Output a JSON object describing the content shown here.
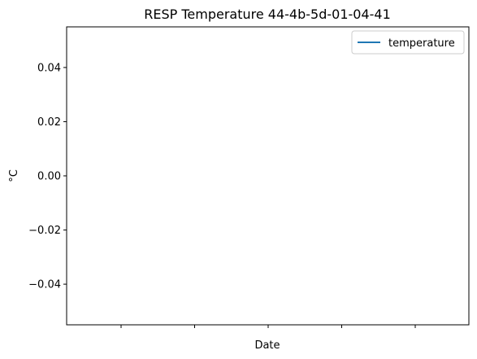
{
  "chart_data": {
    "type": "line",
    "title": "RESP Temperature 44-4b-5d-01-04-41",
    "xlabel": "Date",
    "ylabel": "°C",
    "ylim": [
      -0.055,
      0.055
    ],
    "yticks": [
      0.04,
      0.02,
      0.0,
      -0.02,
      -0.04
    ],
    "ytick_labels": [
      "0.04",
      "0.02",
      "0.00",
      "−0.02",
      "−0.04"
    ],
    "xtick_labels": [
      "",
      "",
      "",
      "",
      ""
    ],
    "grid": false,
    "legend": {
      "placement": "top-right",
      "entries": [
        "temperature"
      ]
    },
    "series": [
      {
        "name": "temperature",
        "color": "#1f77b4",
        "x": [],
        "values": []
      }
    ]
  }
}
